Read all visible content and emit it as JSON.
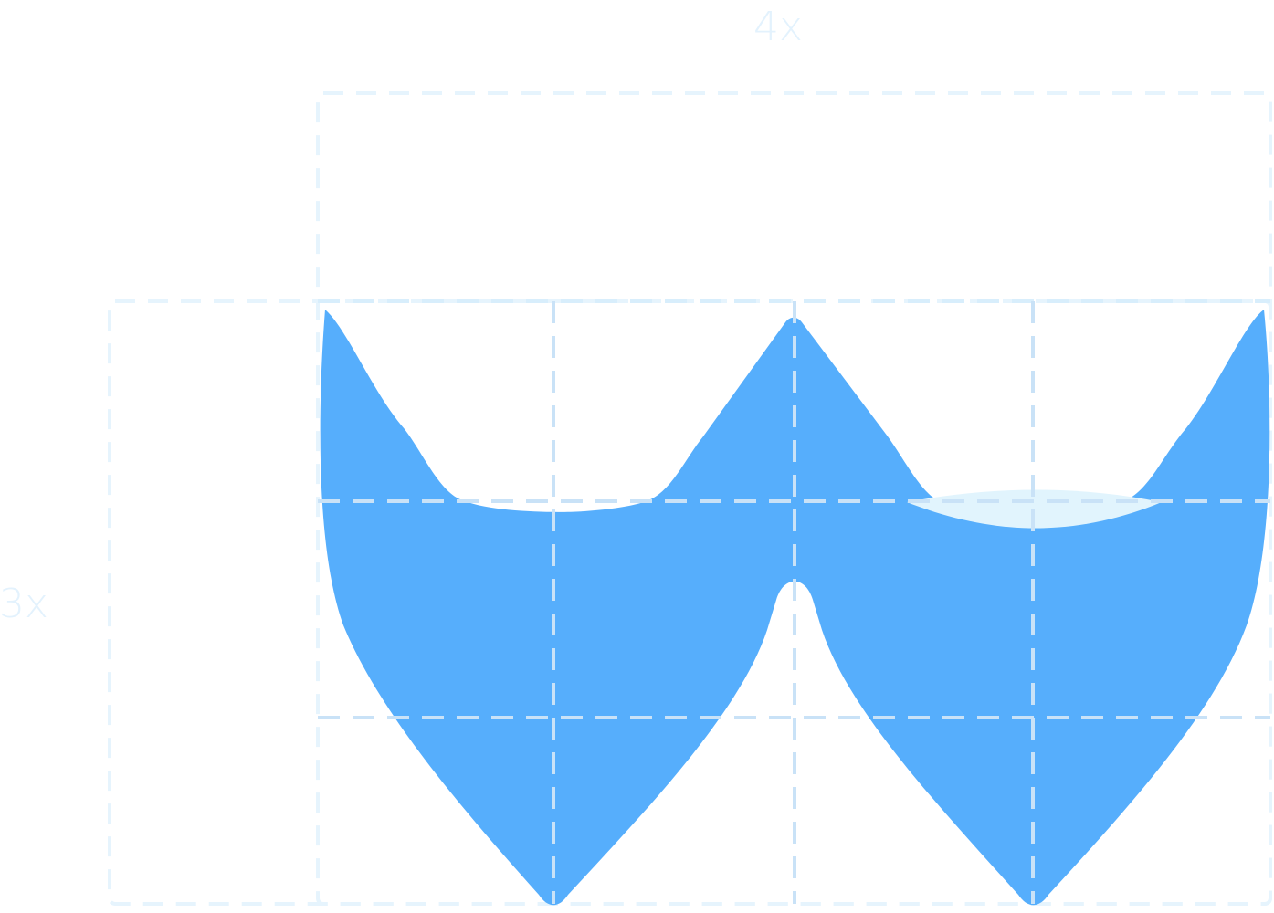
{
  "labels": {
    "width_multiplier": "4x",
    "height_multiplier": "3x"
  },
  "colors": {
    "background": "#ffffff",
    "logo_fill": "#56aefc",
    "highlight_fill": "#e1f4fd",
    "guide_outer": "#e6f4fd",
    "guide_inner": "#d8eefc",
    "guide_on_logo": "#c9e2f7",
    "label_text": "#e3f2fd"
  },
  "icons": {
    "logo": "w-letter-logo"
  }
}
